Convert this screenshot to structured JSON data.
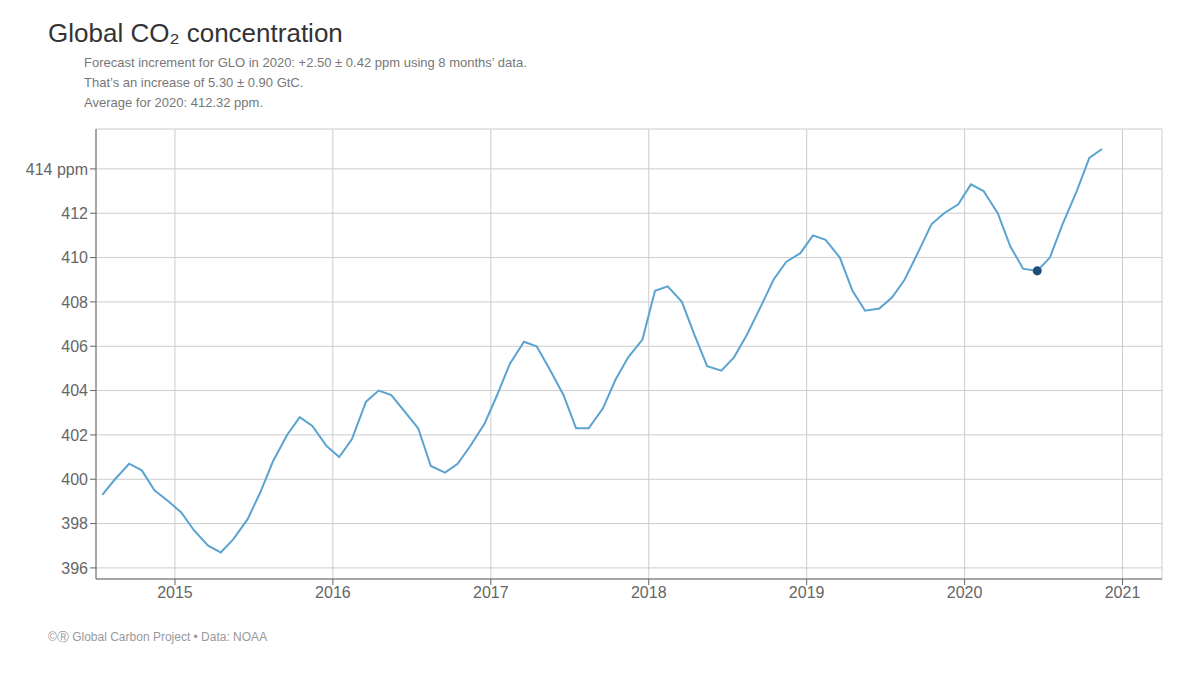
{
  "chart_data": {
    "type": "line",
    "title": "Global CO₂ concentration",
    "annotations": [
      "Forecast increment for GLO in 2020: +2.50 ± 0.42 ppm using 8 months’ data.",
      "That’s an increase of 5.30 ± 0.90 GtC.",
      "Average for 2020: 412.32 ppm."
    ],
    "footer": "©Ⓡ Global Carbon Project  •  Data: NOAA",
    "x": [
      2014.54,
      2014.62,
      2014.71,
      2014.79,
      2014.87,
      2014.96,
      2015.04,
      2015.12,
      2015.21,
      2015.29,
      2015.37,
      2015.46,
      2015.54,
      2015.62,
      2015.71,
      2015.79,
      2015.87,
      2015.96,
      2016.04,
      2016.12,
      2016.21,
      2016.29,
      2016.37,
      2016.46,
      2016.54,
      2016.62,
      2016.71,
      2016.79,
      2016.87,
      2016.96,
      2017.04,
      2017.12,
      2017.21,
      2017.29,
      2017.37,
      2017.46,
      2017.54,
      2017.62,
      2017.71,
      2017.79,
      2017.87,
      2017.96,
      2018.04,
      2018.12,
      2018.21,
      2018.29,
      2018.37,
      2018.46,
      2018.54,
      2018.62,
      2018.71,
      2018.79,
      2018.87,
      2018.96,
      2019.04,
      2019.12,
      2019.21,
      2019.29,
      2019.37,
      2019.46,
      2019.54,
      2019.62,
      2019.71,
      2019.79,
      2019.87,
      2019.96,
      2020.04,
      2020.12,
      2020.21,
      2020.29,
      2020.37,
      2020.46,
      2020.54,
      2020.62,
      2020.71,
      2020.79,
      2020.87
    ],
    "series": [
      {
        "type": "line",
        "color": "#5ba3d0",
        "values": [
          399.3,
          400.0,
          400.7,
          400.4,
          399.5,
          399.0,
          398.5,
          397.7,
          397.0,
          396.7,
          397.3,
          398.2,
          399.4,
          400.8,
          402.0,
          402.8,
          402.4,
          401.5,
          401.0,
          401.8,
          403.5,
          404.0,
          403.8,
          403.0,
          402.3,
          400.6,
          400.3,
          400.7,
          401.5,
          402.5,
          403.8,
          405.2,
          406.2,
          406.0,
          405.0,
          403.8,
          402.3,
          402.3,
          403.2,
          404.5,
          405.5,
          406.3,
          408.5,
          408.7,
          408.0,
          406.5,
          405.1,
          404.9,
          405.5,
          406.5,
          407.8,
          409.0,
          409.8,
          410.2,
          411.0,
          410.8,
          410.0,
          408.5,
          407.6,
          407.7,
          408.2,
          409.0,
          410.3,
          411.5,
          412.0,
          412.4,
          413.3,
          413.0,
          412.0,
          410.5,
          409.5,
          409.4,
          410.0,
          411.5,
          413.0,
          414.5,
          414.9
        ]
      },
      {
        "type": "scatter",
        "color": "#1f4e79",
        "marker": "circle",
        "x": [
          2020.46
        ],
        "values": [
          409.4
        ]
      }
    ],
    "xlim": [
      2014.5,
      2021.25
    ],
    "xticks": [
      2015,
      2016,
      2017,
      2018,
      2019,
      2020,
      2021
    ],
    "ylim": [
      395.5,
      415.8
    ],
    "yticks": [
      396,
      398,
      400,
      402,
      404,
      406,
      408,
      410,
      412,
      {
        "value": 414,
        "label": "414 ppm"
      }
    ],
    "grid": true
  }
}
